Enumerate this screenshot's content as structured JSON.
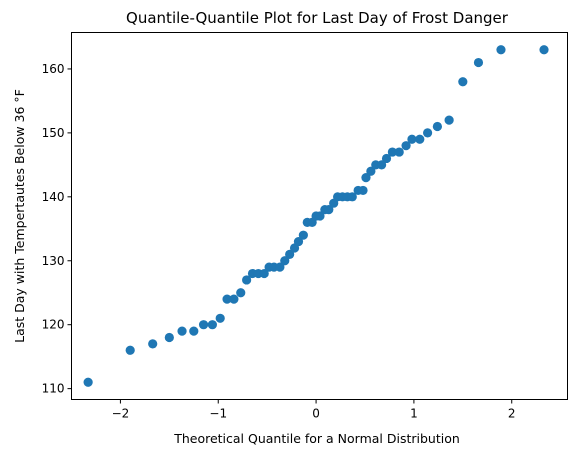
{
  "chart_data": {
    "type": "scatter",
    "title": "Quantile-Quantile Plot for Last Day of Frost Danger",
    "xlabel": "Theoretical Quantile for a Normal Distribution",
    "ylabel": "Last Day with Tempertautes Below 36 °F",
    "xlim": [
      -2.5,
      2.57
    ],
    "ylim": [
      108.3,
      165.7
    ],
    "xticks": [
      -2,
      -1,
      0,
      1,
      2
    ],
    "xtick_labels": [
      "−2",
      "−1",
      "0",
      "1",
      "2"
    ],
    "yticks": [
      110,
      120,
      130,
      140,
      150,
      160
    ],
    "ytick_labels": [
      "110",
      "120",
      "130",
      "140",
      "150",
      "160"
    ],
    "grid": false,
    "marker_color": "#1f77b4",
    "points": [
      {
        "x": -2.33,
        "y": 111
      },
      {
        "x": -1.9,
        "y": 116
      },
      {
        "x": -1.67,
        "y": 117
      },
      {
        "x": -1.5,
        "y": 118
      },
      {
        "x": -1.37,
        "y": 119
      },
      {
        "x": -1.25,
        "y": 119
      },
      {
        "x": -1.15,
        "y": 120
      },
      {
        "x": -1.06,
        "y": 120
      },
      {
        "x": -0.98,
        "y": 121
      },
      {
        "x": -0.91,
        "y": 124
      },
      {
        "x": -0.84,
        "y": 124
      },
      {
        "x": -0.77,
        "y": 125
      },
      {
        "x": -0.71,
        "y": 127
      },
      {
        "x": -0.65,
        "y": 128
      },
      {
        "x": -0.59,
        "y": 128
      },
      {
        "x": -0.53,
        "y": 128
      },
      {
        "x": -0.48,
        "y": 129
      },
      {
        "x": -0.43,
        "y": 129
      },
      {
        "x": -0.37,
        "y": 129
      },
      {
        "x": -0.32,
        "y": 130
      },
      {
        "x": -0.27,
        "y": 131
      },
      {
        "x": -0.22,
        "y": 132
      },
      {
        "x": -0.18,
        "y": 133
      },
      {
        "x": -0.13,
        "y": 134
      },
      {
        "x": -0.09,
        "y": 136
      },
      {
        "x": -0.04,
        "y": 136
      },
      {
        "x": 0.0,
        "y": 137
      },
      {
        "x": 0.04,
        "y": 137
      },
      {
        "x": 0.09,
        "y": 138
      },
      {
        "x": 0.13,
        "y": 138
      },
      {
        "x": 0.18,
        "y": 139
      },
      {
        "x": 0.22,
        "y": 140
      },
      {
        "x": 0.27,
        "y": 140
      },
      {
        "x": 0.32,
        "y": 140
      },
      {
        "x": 0.37,
        "y": 140
      },
      {
        "x": 0.43,
        "y": 141
      },
      {
        "x": 0.48,
        "y": 141
      },
      {
        "x": 0.51,
        "y": 143
      },
      {
        "x": 0.56,
        "y": 144
      },
      {
        "x": 0.61,
        "y": 145
      },
      {
        "x": 0.67,
        "y": 145
      },
      {
        "x": 0.72,
        "y": 146
      },
      {
        "x": 0.78,
        "y": 147
      },
      {
        "x": 0.85,
        "y": 147
      },
      {
        "x": 0.92,
        "y": 148
      },
      {
        "x": 0.98,
        "y": 149
      },
      {
        "x": 1.06,
        "y": 149
      },
      {
        "x": 1.14,
        "y": 150
      },
      {
        "x": 1.24,
        "y": 151
      },
      {
        "x": 1.36,
        "y": 152
      },
      {
        "x": 1.5,
        "y": 158
      },
      {
        "x": 1.66,
        "y": 161
      },
      {
        "x": 1.89,
        "y": 163
      },
      {
        "x": 2.33,
        "y": 163
      }
    ]
  }
}
